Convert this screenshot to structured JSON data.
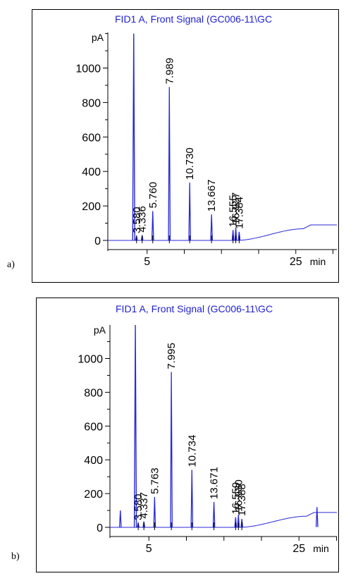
{
  "panels": [
    {
      "tag": "a)",
      "title": "FID1 A, Front Signal (GC006-11\\GC",
      "y_unit": "pA",
      "x_unit": "min"
    },
    {
      "tag": "b)",
      "title": "FID1 A, Front Signal (GC006-11\\GC",
      "y_unit": "pA",
      "x_unit": "min"
    }
  ],
  "colors": {
    "trace": "#2a2ad8",
    "title": "#1f1fd0",
    "axis": "#000000"
  },
  "chart_data": [
    {
      "type": "line",
      "title": "FID1 A, Front Signal (GC006-11\\GC",
      "xlabel": "min",
      "ylabel": "pA",
      "xlim": [
        0,
        29
      ],
      "ylim": [
        -40,
        1220
      ],
      "x_ticks": [
        5,
        25
      ],
      "y_ticks": [
        0,
        200,
        400,
        600,
        800,
        1000
      ],
      "solvent_peak": {
        "x": 3.2,
        "y": 1200
      },
      "peaks": [
        {
          "label": "3.580",
          "x": 3.58,
          "y": 25
        },
        {
          "label": "4.336",
          "x": 4.336,
          "y": 30
        },
        {
          "label": "5.760",
          "x": 5.76,
          "y": 170
        },
        {
          "label": "7.989",
          "x": 7.989,
          "y": 890
        },
        {
          "label": "10.730",
          "x": 10.73,
          "y": 335
        },
        {
          "label": "13.667",
          "x": 13.667,
          "y": 150
        },
        {
          "label": "16.555",
          "x": 16.555,
          "y": 60
        },
        {
          "label": "16.927",
          "x": 16.927,
          "y": 75
        },
        {
          "label": "17.384",
          "x": 17.384,
          "y": 50
        }
      ],
      "baseline_rise": {
        "start_x": 17,
        "end_x": 26,
        "plateau_y": 90
      }
    },
    {
      "type": "line",
      "title": "FID1 A, Front Signal (GC006-11\\GC",
      "xlabel": "min",
      "ylabel": "pA",
      "xlim": [
        0,
        29
      ],
      "ylim": [
        -40,
        1220
      ],
      "x_ticks": [
        5,
        25
      ],
      "y_ticks": [
        0,
        200,
        400,
        600,
        800,
        1000
      ],
      "solvent_peak": {
        "x": 3.2,
        "y": 1200
      },
      "peaks": [
        {
          "label": "",
          "x": 1.2,
          "y": 100
        },
        {
          "label": "3.580",
          "x": 3.58,
          "y": 25
        },
        {
          "label": "4.337",
          "x": 4.337,
          "y": 35
        },
        {
          "label": "5.763",
          "x": 5.763,
          "y": 180
        },
        {
          "label": "7.995",
          "x": 7.995,
          "y": 920
        },
        {
          "label": "10.734",
          "x": 10.734,
          "y": 340
        },
        {
          "label": "13.671",
          "x": 13.671,
          "y": 150
        },
        {
          "label": "16.559",
          "x": 16.559,
          "y": 60
        },
        {
          "label": "16.930",
          "x": 16.93,
          "y": 75
        },
        {
          "label": "17.388",
          "x": 17.388,
          "y": 50
        },
        {
          "label": "",
          "x": 27.4,
          "y": 120
        }
      ],
      "baseline_rise": {
        "start_x": 17,
        "end_x": 26,
        "plateau_y": 88
      }
    }
  ]
}
